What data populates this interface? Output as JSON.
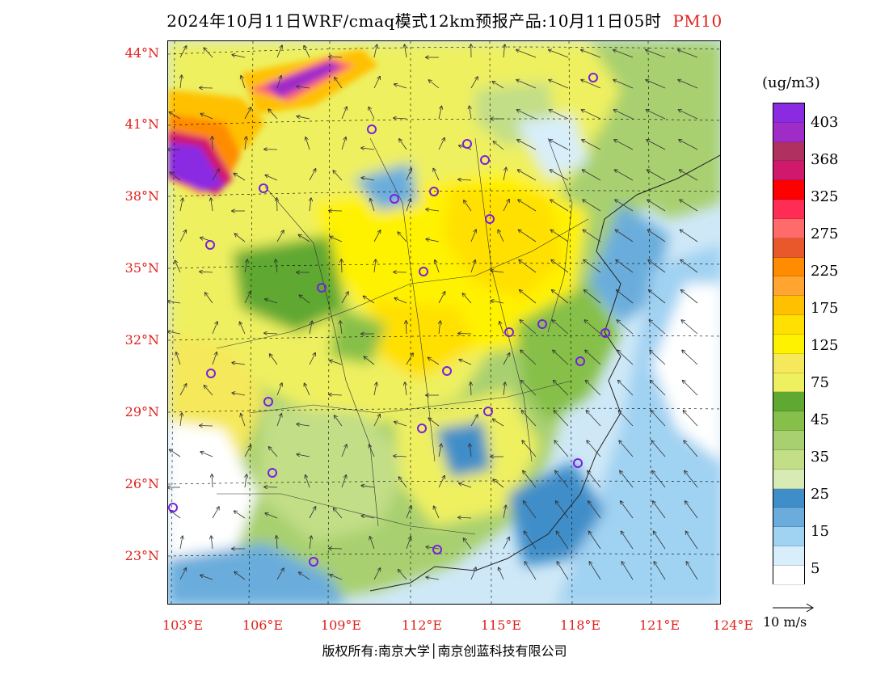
{
  "title": {
    "main": "2024年10月11日WRF/cmaq模式12km预报产品:10月11日05时",
    "variable": "PM10"
  },
  "latitude_labels": [
    "44°N",
    "41°N",
    "38°N",
    "35°N",
    "32°N",
    "29°N",
    "26°N",
    "23°N"
  ],
  "longitude_labels": [
    "103°E",
    "106°E",
    "109°E",
    "112°E",
    "115°E",
    "118°E",
    "121°E",
    "124°E"
  ],
  "legend": {
    "unit": "(ug/m3)",
    "labels": [
      "403",
      "368",
      "325",
      "275",
      "225",
      "175",
      "125",
      "75",
      "45",
      "35",
      "25",
      "15",
      "5"
    ],
    "colors": [
      "#8a2be2",
      "#a02cc8",
      "#b03060",
      "#d0186c",
      "#ff0000",
      "#ff2d55",
      "#ff6a6a",
      "#e8582a",
      "#ff8c00",
      "#ffa530",
      "#ffc000",
      "#ffe000",
      "#fff200",
      "#f5e85a",
      "#eef060",
      "#5fa832",
      "#86c04a",
      "#a8d070",
      "#c2de86",
      "#d8ebb4",
      "#3f8ec9",
      "#6aaddc",
      "#a0d2f2",
      "#d8eefa",
      "#ffffff"
    ]
  },
  "wind_reference": {
    "label": "10 m/s"
  },
  "credit": "版权所有:南京大学│南京创蓝科技有限公司"
}
